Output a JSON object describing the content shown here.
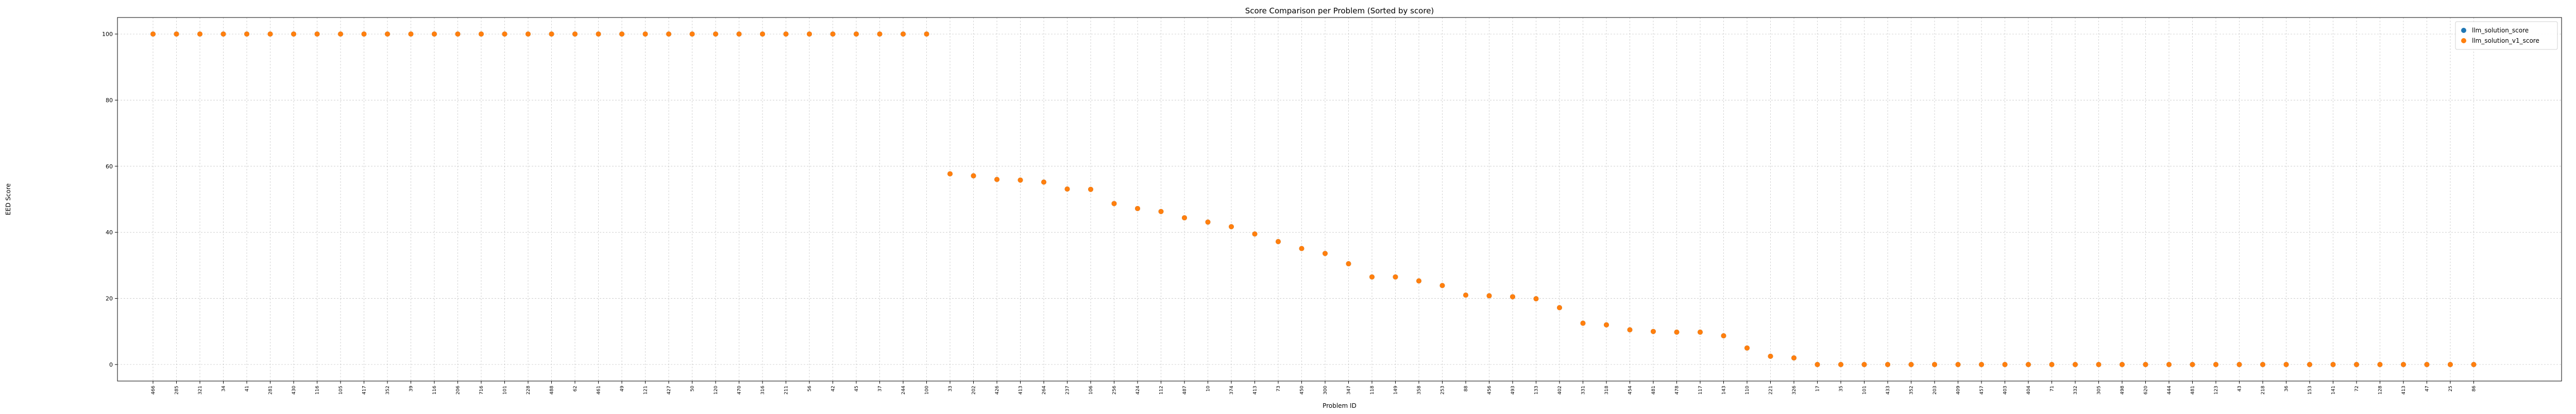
{
  "chart_data": {
    "type": "scatter",
    "title": "Score Comparison per Problem (Sorted by score)",
    "xlabel": "Problem ID",
    "ylabel": "EED Score",
    "ylim": [
      -5,
      105
    ],
    "yticks": [
      0,
      20,
      40,
      60,
      80,
      100
    ],
    "grid": true,
    "legend_position": "top-right",
    "categories": [
      "466",
      "285",
      "321",
      "34",
      "41",
      "281",
      "430",
      "116",
      "105",
      "417",
      "352",
      "39",
      "116",
      "206",
      "716",
      "101",
      "228",
      "488",
      "62",
      "461",
      "49",
      "121",
      "427",
      "50",
      "120",
      "470",
      "316",
      "211",
      "56",
      "42",
      "45",
      "37",
      "244",
      "100",
      "33",
      "202",
      "426",
      "413",
      "264",
      "237",
      "106",
      "256",
      "424",
      "112",
      "487",
      "10",
      "374",
      "413",
      "73",
      "450",
      "300",
      "347",
      "118",
      "149",
      "358",
      "253",
      "88",
      "456",
      "493",
      "133",
      "402",
      "331",
      "318",
      "454",
      "481",
      "478",
      "117",
      "143",
      "110",
      "221",
      "326",
      "17",
      "35",
      "101",
      "433",
      "352",
      "203",
      "409",
      "457",
      "403",
      "404",
      "71",
      "332",
      "305",
      "498",
      "620",
      "444",
      "481",
      "123",
      "43",
      "218",
      "36",
      "153",
      "141",
      "72",
      "128",
      "413",
      "47",
      "25",
      "86"
    ],
    "series": [
      {
        "name": "llm_solution_score",
        "color": "#1f77b4",
        "values": [
          100,
          100,
          100,
          100,
          100,
          100,
          100,
          100,
          100,
          100,
          100,
          100,
          100,
          100,
          100,
          100,
          100,
          100,
          100,
          100,
          100,
          100,
          100,
          100,
          100,
          100,
          100,
          100,
          100,
          100,
          100,
          100,
          100,
          100,
          57.7,
          57.1,
          56,
          55.8,
          55.2,
          53.1,
          53,
          48.7,
          47.2,
          46.3,
          44.4,
          43.1,
          41.7,
          39.5,
          37.2,
          35.1,
          33.6,
          30.5,
          26.5,
          26.5,
          25.3,
          23.9,
          21,
          20.8,
          20.5,
          19.9,
          17.2,
          12.5,
          12,
          10.5,
          10,
          9.8,
          9.8,
          8.7,
          5,
          2.5,
          2,
          0,
          0,
          0,
          0,
          0,
          0,
          0,
          0,
          0,
          0,
          0,
          0,
          0,
          0,
          0,
          0,
          0,
          0,
          0,
          0,
          0,
          0,
          0,
          0,
          0,
          0,
          0,
          0,
          0
        ]
      },
      {
        "name": "llm_solution_v1_score",
        "color": "#ff7f0e",
        "values": [
          100,
          100,
          100,
          100,
          100,
          100,
          100,
          100,
          100,
          100,
          100,
          100,
          100,
          100,
          100,
          100,
          100,
          100,
          100,
          100,
          100,
          100,
          100,
          100,
          100,
          100,
          100,
          100,
          100,
          100,
          100,
          100,
          100,
          100,
          57.7,
          57.1,
          56,
          55.8,
          55.2,
          53.1,
          53,
          48.7,
          47.2,
          46.3,
          44.4,
          43.1,
          41.7,
          39.5,
          37.2,
          35.1,
          33.6,
          30.5,
          26.5,
          26.5,
          25.3,
          23.9,
          21,
          20.8,
          20.5,
          19.9,
          17.2,
          12.5,
          12,
          10.5,
          10,
          9.8,
          9.8,
          8.7,
          5,
          2.5,
          2,
          0,
          0,
          0,
          0,
          0,
          0,
          0,
          0,
          0,
          0,
          0,
          0,
          0,
          0,
          0,
          0,
          0,
          0,
          0,
          0,
          0,
          0,
          0,
          0,
          0,
          0,
          0,
          0,
          0
        ]
      }
    ]
  }
}
